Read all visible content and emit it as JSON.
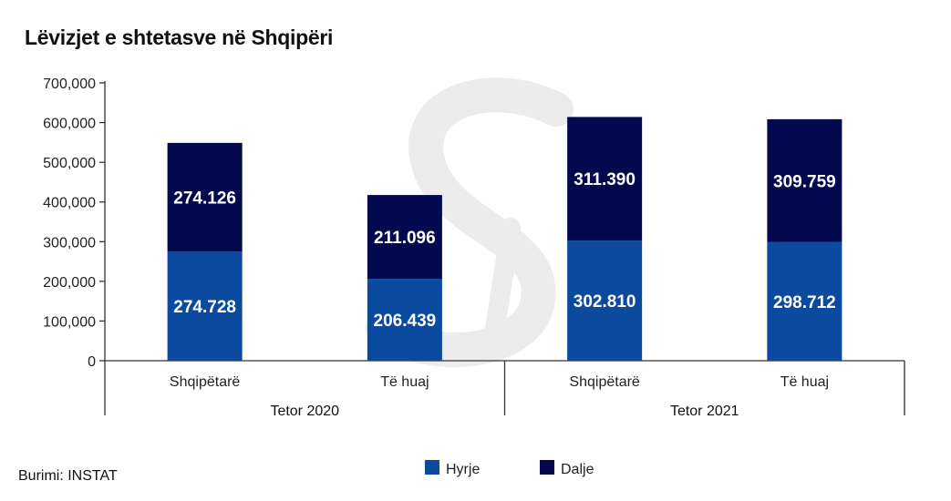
{
  "chart_data": {
    "type": "bar",
    "stacked": true,
    "title": "Lëvizjet e shtetasve në Shqipëri",
    "source_label": "Burimi:",
    "source_value": "INSTAT",
    "ylim": [
      0,
      700000
    ],
    "yticks": [
      0,
      100000,
      200000,
      300000,
      400000,
      500000,
      600000,
      700000
    ],
    "ytick_labels": [
      "0",
      "100,000",
      "200,000",
      "300,000",
      "400,000",
      "500,000",
      "600,000",
      "700,000"
    ],
    "groups": [
      {
        "label": "Tetor 2020",
        "categories": [
          "Shqipëtarë",
          "Të huaj"
        ]
      },
      {
        "label": "Tetor 2021",
        "categories": [
          "Shqipëtarë",
          "Të huaj"
        ]
      }
    ],
    "categories": [
      "Shqipëtarë",
      "Të huaj",
      "Shqipëtarë",
      "Të huaj"
    ],
    "series": [
      {
        "name": "Hyrje",
        "color": "#0b4a9e",
        "values": [
          274728,
          206439,
          302810,
          298712
        ],
        "labels": [
          "274.728",
          "206.439",
          "302.810",
          "298.712"
        ]
      },
      {
        "name": "Dalje",
        "color": "#03094f",
        "values": [
          274126,
          211096,
          311390,
          309759
        ],
        "labels": [
          "274.126",
          "211.096",
          "311.390",
          "309.759"
        ]
      }
    ],
    "legend_position": "bottom",
    "grid": false
  }
}
